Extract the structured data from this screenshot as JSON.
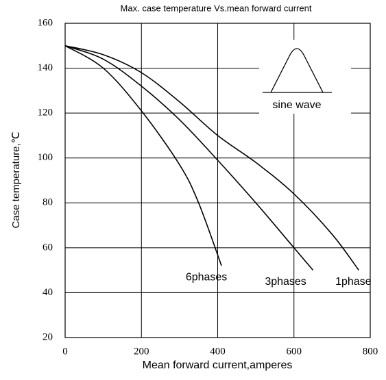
{
  "chart_data": {
    "type": "line",
    "title": "Max. case temperature  Vs.mean forward current",
    "xlabel": "Mean forward  current,amperes",
    "ylabel": "Case temperature,℃",
    "annotation": "sine wave",
    "xlim": [
      0,
      800
    ],
    "xticks": [
      0,
      200,
      400,
      600,
      800
    ],
    "ylim": [
      20,
      160
    ],
    "yticks": [
      20,
      40,
      60,
      80,
      100,
      120,
      140,
      160
    ],
    "grid": true,
    "series": [
      {
        "name": "1phase",
        "color": "#000000",
        "x": [
          0,
          100,
          200,
          300,
          400,
          500,
          600,
          700,
          770
        ],
        "values": [
          150,
          146,
          138,
          125,
          110,
          98,
          84,
          66,
          50
        ]
      },
      {
        "name": "3phases",
        "color": "#000000",
        "x": [
          0,
          100,
          200,
          300,
          400,
          500,
          600,
          650
        ],
        "values": [
          150,
          144,
          132,
          117,
          99,
          80,
          60,
          50
        ]
      },
      {
        "name": "6phases",
        "color": "#000000",
        "x": [
          0,
          100,
          200,
          300,
          350,
          410
        ],
        "values": [
          150,
          140,
          121,
          97,
          80,
          52
        ]
      }
    ]
  }
}
